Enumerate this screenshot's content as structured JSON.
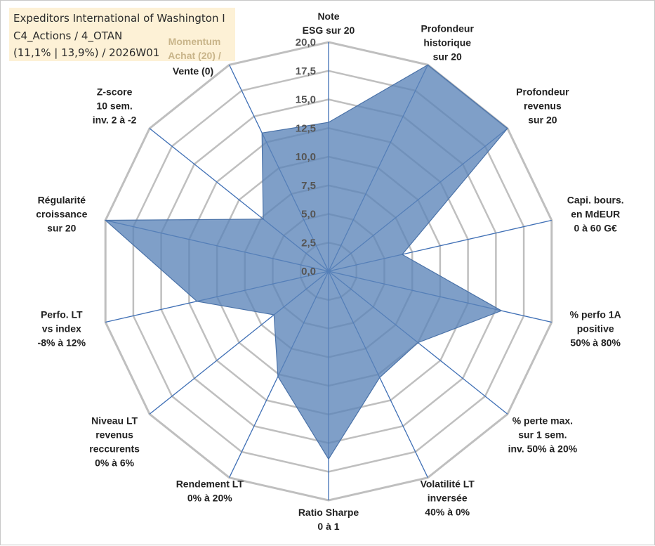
{
  "header": {
    "line1": "Expeditors International of Washington I",
    "line2": "C4_Actions / 4_OTAN",
    "line3": "(11,1% | 13,9%) / 2026W01"
  },
  "momentum": {
    "line1": "Momentum",
    "line2": "Achat (20) /",
    "line3": "Vente (0)"
  },
  "colors": {
    "fill": "#5b84b8",
    "stroke": "#4a72a8",
    "grid": "#bfbfbf",
    "spoke": "#3f6fb5",
    "title_bg": "#fdf1d6"
  },
  "chart_data": {
    "type": "radar",
    "range": [
      0,
      20
    ],
    "tick_step": 2.5,
    "tick_labels": [
      "0,0",
      "2,5",
      "5,0",
      "7,5",
      "10,0",
      "12,5",
      "15,0",
      "17,5",
      "20,0"
    ],
    "axes": [
      {
        "lines": [
          "Note",
          "ESG sur 20"
        ],
        "value": 13.0
      },
      {
        "lines": [
          "Profondeur",
          "historique",
          "sur 20"
        ],
        "value": 20.0
      },
      {
        "lines": [
          "Profondeur",
          "revenus",
          "sur 20"
        ],
        "value": 20.0
      },
      {
        "lines": [
          "Capi. bours.",
          "en MdEUR",
          "0 à 60 G€"
        ],
        "value": 6.6
      },
      {
        "lines": [
          "% perfo 1A",
          "positive",
          "50% à 80%"
        ],
        "value": 15.5
      },
      {
        "lines": [
          "% perte max.",
          "sur 1 sem.",
          "inv. 50% à 20%"
        ],
        "value": 10.0
      },
      {
        "lines": [
          "Volatilité LT",
          "inversée",
          "40% à 0%"
        ],
        "value": 10.3
      },
      {
        "lines": [
          "Ratio Sharpe",
          "0 à 1"
        ],
        "value": 16.4
      },
      {
        "lines": [
          "Rendement LT",
          "0% à 20%"
        ],
        "value": 10.2
      },
      {
        "lines": [
          "Niveau LT",
          "revenus",
          "reccurents",
          "0% à 6%"
        ],
        "value": 6.1
      },
      {
        "lines": [
          "Perfo. LT",
          "vs index",
          "-8% à 12%"
        ],
        "value": 11.8
      },
      {
        "lines": [
          "Régularité",
          "croissance",
          "sur 20"
        ],
        "value": 20.0
      },
      {
        "lines": [
          "Z-score",
          "10 sem.",
          "inv. 2 à -2"
        ],
        "value": 7.3
      },
      {
        "lines": [
          "Momentum",
          "Achat (20) /",
          "Vente (0)"
        ],
        "value": 13.4
      }
    ]
  }
}
